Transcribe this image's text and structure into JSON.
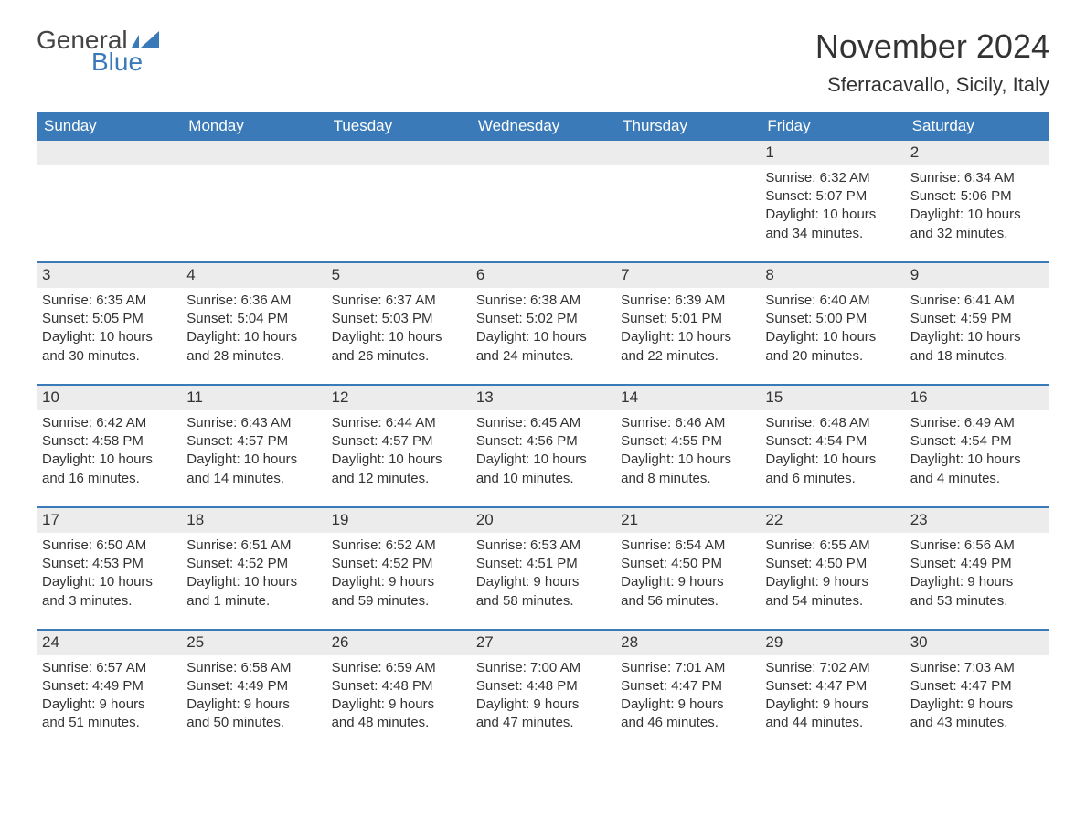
{
  "logo": {
    "line1": "General",
    "line2": "Blue",
    "icon_color": "#3a7ab8",
    "text_color": "#444444"
  },
  "title": "November 2024",
  "location": "Sferracavallo, Sicily, Italy",
  "colors": {
    "header_bg": "#3a7ab8",
    "header_text": "#ffffff",
    "daynum_bg": "#ececec",
    "border": "#3a7ab8",
    "body_text": "#333333",
    "background": "#ffffff"
  },
  "typography": {
    "title_fontsize": 36,
    "location_fontsize": 22,
    "header_fontsize": 17,
    "cell_fontsize": 15
  },
  "day_headers": [
    "Sunday",
    "Monday",
    "Tuesday",
    "Wednesday",
    "Thursday",
    "Friday",
    "Saturday"
  ],
  "weeks": [
    [
      null,
      null,
      null,
      null,
      null,
      {
        "n": "1",
        "sr": "Sunrise: 6:32 AM",
        "ss": "Sunset: 5:07 PM",
        "d1": "Daylight: 10 hours",
        "d2": "and 34 minutes."
      },
      {
        "n": "2",
        "sr": "Sunrise: 6:34 AM",
        "ss": "Sunset: 5:06 PM",
        "d1": "Daylight: 10 hours",
        "d2": "and 32 minutes."
      }
    ],
    [
      {
        "n": "3",
        "sr": "Sunrise: 6:35 AM",
        "ss": "Sunset: 5:05 PM",
        "d1": "Daylight: 10 hours",
        "d2": "and 30 minutes."
      },
      {
        "n": "4",
        "sr": "Sunrise: 6:36 AM",
        "ss": "Sunset: 5:04 PM",
        "d1": "Daylight: 10 hours",
        "d2": "and 28 minutes."
      },
      {
        "n": "5",
        "sr": "Sunrise: 6:37 AM",
        "ss": "Sunset: 5:03 PM",
        "d1": "Daylight: 10 hours",
        "d2": "and 26 minutes."
      },
      {
        "n": "6",
        "sr": "Sunrise: 6:38 AM",
        "ss": "Sunset: 5:02 PM",
        "d1": "Daylight: 10 hours",
        "d2": "and 24 minutes."
      },
      {
        "n": "7",
        "sr": "Sunrise: 6:39 AM",
        "ss": "Sunset: 5:01 PM",
        "d1": "Daylight: 10 hours",
        "d2": "and 22 minutes."
      },
      {
        "n": "8",
        "sr": "Sunrise: 6:40 AM",
        "ss": "Sunset: 5:00 PM",
        "d1": "Daylight: 10 hours",
        "d2": "and 20 minutes."
      },
      {
        "n": "9",
        "sr": "Sunrise: 6:41 AM",
        "ss": "Sunset: 4:59 PM",
        "d1": "Daylight: 10 hours",
        "d2": "and 18 minutes."
      }
    ],
    [
      {
        "n": "10",
        "sr": "Sunrise: 6:42 AM",
        "ss": "Sunset: 4:58 PM",
        "d1": "Daylight: 10 hours",
        "d2": "and 16 minutes."
      },
      {
        "n": "11",
        "sr": "Sunrise: 6:43 AM",
        "ss": "Sunset: 4:57 PM",
        "d1": "Daylight: 10 hours",
        "d2": "and 14 minutes."
      },
      {
        "n": "12",
        "sr": "Sunrise: 6:44 AM",
        "ss": "Sunset: 4:57 PM",
        "d1": "Daylight: 10 hours",
        "d2": "and 12 minutes."
      },
      {
        "n": "13",
        "sr": "Sunrise: 6:45 AM",
        "ss": "Sunset: 4:56 PM",
        "d1": "Daylight: 10 hours",
        "d2": "and 10 minutes."
      },
      {
        "n": "14",
        "sr": "Sunrise: 6:46 AM",
        "ss": "Sunset: 4:55 PM",
        "d1": "Daylight: 10 hours",
        "d2": "and 8 minutes."
      },
      {
        "n": "15",
        "sr": "Sunrise: 6:48 AM",
        "ss": "Sunset: 4:54 PM",
        "d1": "Daylight: 10 hours",
        "d2": "and 6 minutes."
      },
      {
        "n": "16",
        "sr": "Sunrise: 6:49 AM",
        "ss": "Sunset: 4:54 PM",
        "d1": "Daylight: 10 hours",
        "d2": "and 4 minutes."
      }
    ],
    [
      {
        "n": "17",
        "sr": "Sunrise: 6:50 AM",
        "ss": "Sunset: 4:53 PM",
        "d1": "Daylight: 10 hours",
        "d2": "and 3 minutes."
      },
      {
        "n": "18",
        "sr": "Sunrise: 6:51 AM",
        "ss": "Sunset: 4:52 PM",
        "d1": "Daylight: 10 hours",
        "d2": "and 1 minute."
      },
      {
        "n": "19",
        "sr": "Sunrise: 6:52 AM",
        "ss": "Sunset: 4:52 PM",
        "d1": "Daylight: 9 hours",
        "d2": "and 59 minutes."
      },
      {
        "n": "20",
        "sr": "Sunrise: 6:53 AM",
        "ss": "Sunset: 4:51 PM",
        "d1": "Daylight: 9 hours",
        "d2": "and 58 minutes."
      },
      {
        "n": "21",
        "sr": "Sunrise: 6:54 AM",
        "ss": "Sunset: 4:50 PM",
        "d1": "Daylight: 9 hours",
        "d2": "and 56 minutes."
      },
      {
        "n": "22",
        "sr": "Sunrise: 6:55 AM",
        "ss": "Sunset: 4:50 PM",
        "d1": "Daylight: 9 hours",
        "d2": "and 54 minutes."
      },
      {
        "n": "23",
        "sr": "Sunrise: 6:56 AM",
        "ss": "Sunset: 4:49 PM",
        "d1": "Daylight: 9 hours",
        "d2": "and 53 minutes."
      }
    ],
    [
      {
        "n": "24",
        "sr": "Sunrise: 6:57 AM",
        "ss": "Sunset: 4:49 PM",
        "d1": "Daylight: 9 hours",
        "d2": "and 51 minutes."
      },
      {
        "n": "25",
        "sr": "Sunrise: 6:58 AM",
        "ss": "Sunset: 4:49 PM",
        "d1": "Daylight: 9 hours",
        "d2": "and 50 minutes."
      },
      {
        "n": "26",
        "sr": "Sunrise: 6:59 AM",
        "ss": "Sunset: 4:48 PM",
        "d1": "Daylight: 9 hours",
        "d2": "and 48 minutes."
      },
      {
        "n": "27",
        "sr": "Sunrise: 7:00 AM",
        "ss": "Sunset: 4:48 PM",
        "d1": "Daylight: 9 hours",
        "d2": "and 47 minutes."
      },
      {
        "n": "28",
        "sr": "Sunrise: 7:01 AM",
        "ss": "Sunset: 4:47 PM",
        "d1": "Daylight: 9 hours",
        "d2": "and 46 minutes."
      },
      {
        "n": "29",
        "sr": "Sunrise: 7:02 AM",
        "ss": "Sunset: 4:47 PM",
        "d1": "Daylight: 9 hours",
        "d2": "and 44 minutes."
      },
      {
        "n": "30",
        "sr": "Sunrise: 7:03 AM",
        "ss": "Sunset: 4:47 PM",
        "d1": "Daylight: 9 hours",
        "d2": "and 43 minutes."
      }
    ]
  ]
}
